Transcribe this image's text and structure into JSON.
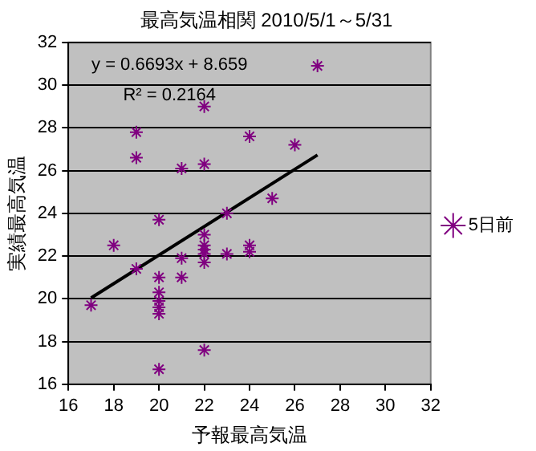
{
  "chart_data": {
    "type": "scatter",
    "title": "最高気温相関 2010/5/1～5/31",
    "xlabel": "予報最高気温",
    "ylabel": "実績最高気温",
    "annotations": [
      "y = 0.6693x + 8.659",
      "R² = 0.2164"
    ],
    "series": [
      {
        "name": "5日前",
        "color": "#800080",
        "marker": "cross",
        "x": [
          17,
          18,
          19,
          19,
          19,
          20,
          20,
          20,
          20,
          20,
          20,
          20,
          21,
          21,
          21,
          22,
          22,
          22,
          22,
          22,
          22,
          22,
          22,
          23,
          23,
          24,
          24,
          24,
          25,
          26,
          27
        ],
        "values": [
          19.7,
          22.5,
          27.8,
          26.6,
          21.4,
          23.7,
          21.0,
          20.3,
          19.9,
          19.6,
          19.3,
          16.7,
          26.1,
          21.9,
          21.0,
          29.0,
          26.3,
          23.0,
          22.5,
          22.3,
          22.1,
          21.7,
          17.6,
          24.0,
          22.1,
          27.6,
          22.5,
          22.2,
          24.7,
          27.2,
          30.9
        ]
      },
      {
        "type": "line",
        "color": "#000000",
        "marker": "none",
        "x": [
          17,
          27
        ],
        "values": [
          20.04,
          26.73
        ]
      }
    ],
    "xlim": [
      16,
      32
    ],
    "xticks": [
      16,
      18,
      20,
      22,
      24,
      26,
      28,
      30,
      32
    ],
    "ylim": [
      16,
      32
    ],
    "yticks": [
      16,
      18,
      20,
      22,
      24,
      26,
      28,
      30,
      32
    ],
    "grid": "y",
    "legend": "right"
  }
}
